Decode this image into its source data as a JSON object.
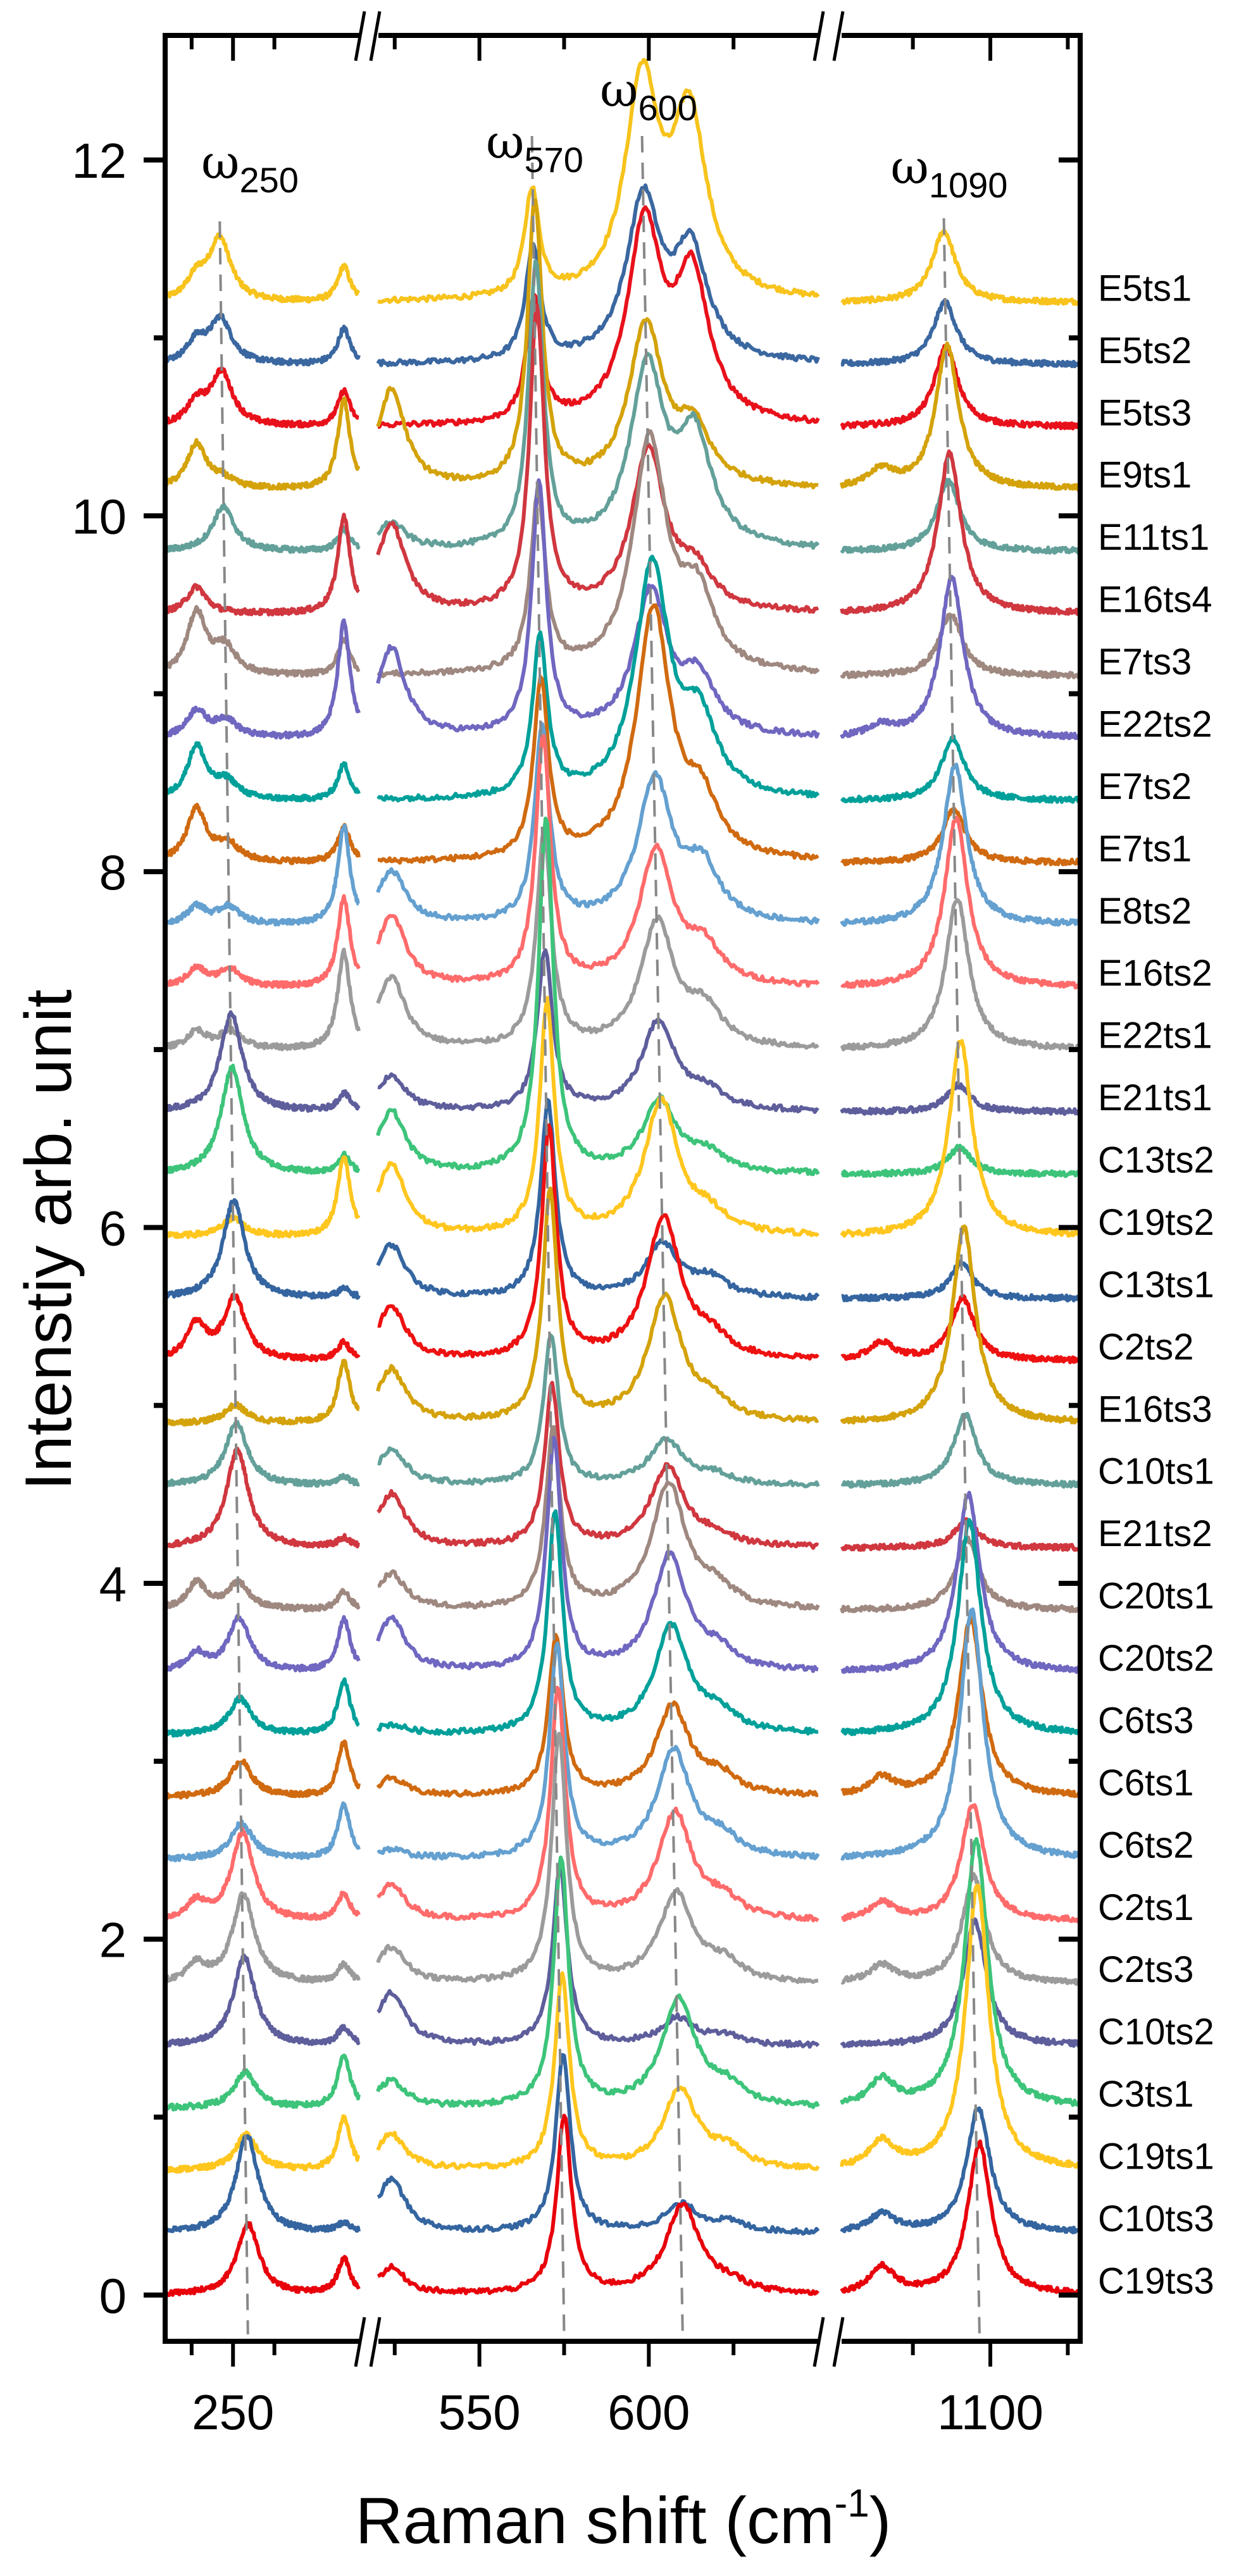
{
  "chart_data": {
    "type": "line",
    "title": "",
    "xlabel": "Raman shift (cm",
    "xlabel_sup": "-1",
    "xlabel_close": ")",
    "ylabel": "Intenstiy arb. unit",
    "ylim": [
      -0.26,
      12.7
    ],
    "yticks": [
      "0",
      "2",
      "4",
      "6",
      "8",
      "10",
      "12"
    ],
    "grid": false,
    "x_segments": [
      {
        "range": [
          209,
          326
        ],
        "major_ticks": [
          "250"
        ],
        "minor_ticks": [
          225,
          275
        ]
      },
      {
        "range": [
          520,
          650
        ],
        "major_ticks": [
          "550",
          "600"
        ],
        "minor_ticks": [
          525,
          575,
          625
        ]
      },
      {
        "range": [
          1052,
          1129
        ],
        "major_ticks": [
          "1100"
        ],
        "minor_ticks": [
          1075,
          1125
        ]
      }
    ],
    "offset_step": 0.35,
    "mode_positions_cm": {
      "low": 228,
      "w250": [
        242,
        259
      ],
      "p317": 317,
      "p524": 524,
      "w570": [
        565.5,
        575
      ],
      "w600": [
        598,
        610
      ],
      "w1090": [
        1085,
        1096.5
      ],
      "p1065": 1065
    },
    "amplitude_order": [
      "low",
      "w250",
      "p317",
      "p524",
      "w570",
      "w600",
      "shoulder",
      "w1090",
      "p1065"
    ],
    "annotations": [
      {
        "symbol": "ω",
        "sub": "250"
      },
      {
        "symbol": "ω",
        "sub": "570"
      },
      {
        "symbol": "ω",
        "sub": "600"
      },
      {
        "symbol": "ω",
        "sub": "1090"
      }
    ],
    "series": [
      {
        "name": "E5ts1",
        "color": "#F7C31C",
        "amps": [
          0.12,
          0.35,
          0.2,
          0,
          0.6,
          1.2,
          1.0,
          0.4,
          0
        ]
      },
      {
        "name": "E5ts2",
        "color": "#3A67A0",
        "amps": [
          0.12,
          0.25,
          0.2,
          0,
          0.65,
          0.9,
          0.6,
          0.35,
          0
        ]
      },
      {
        "name": "E5ts3",
        "color": "#E8111B",
        "amps": [
          0.12,
          0.3,
          0.2,
          0,
          0.7,
          1.1,
          0.8,
          0.45,
          0
        ]
      },
      {
        "name": "E9ts1",
        "color": "#D4A20A",
        "amps": [
          0.25,
          0.05,
          0.5,
          0.55,
          1.6,
          0.9,
          0.3,
          0.8,
          0.1
        ]
      },
      {
        "name": "E11ts1",
        "color": "#64A09A",
        "amps": [
          0,
          0.25,
          0.12,
          0.15,
          1.6,
          1.0,
          0.6,
          0.4,
          0
        ]
      },
      {
        "name": "E16ts4",
        "color": "#D0373F",
        "amps": [
          0.15,
          0,
          0.55,
          0.5,
          1.7,
          0.9,
          0.2,
          0.9,
          0
        ]
      },
      {
        "name": "E7ts3",
        "color": "#9E8880",
        "amps": [
          0.35,
          0.15,
          0.2,
          0,
          1.0,
          1.3,
          0.4,
          0.35,
          0
        ]
      },
      {
        "name": "E22ts2",
        "color": "#6F67C0",
        "amps": [
          0.15,
          0.1,
          0.65,
          0.5,
          1.4,
          0.8,
          0.3,
          0.9,
          0.06
        ]
      },
      {
        "name": "E7ts2",
        "color": "#00A09A",
        "amps": [
          0.3,
          0.1,
          0.2,
          0,
          0.9,
          1.3,
          0.4,
          0.35,
          0
        ]
      },
      {
        "name": "E7ts1",
        "color": "#D06A10",
        "amps": [
          0.3,
          0.1,
          0.2,
          0,
          1.0,
          1.4,
          0.3,
          0.3,
          0
        ]
      },
      {
        "name": "E8ts2",
        "color": "#64A0D0",
        "amps": [
          0.1,
          0.1,
          0.55,
          0.3,
          1.1,
          0.8,
          0.3,
          0.9,
          0
        ]
      },
      {
        "name": "E16ts2",
        "color": "#FF6B6B",
        "amps": [
          0.1,
          0.1,
          0.5,
          0.4,
          1.4,
          0.75,
          0.2,
          0.95,
          0
        ]
      },
      {
        "name": "E22ts1",
        "color": "#9B9B9B",
        "amps": [
          0.1,
          0.1,
          0.55,
          0.4,
          1.2,
          0.7,
          0.2,
          0.85,
          0
        ]
      },
      {
        "name": "E21ts1",
        "color": "#5E5E9C",
        "amps": [
          0,
          0.55,
          0.1,
          0.2,
          0.9,
          0.5,
          0.1,
          0.15,
          0
        ]
      },
      {
        "name": "C13ts2",
        "color": "#3DC47A",
        "amps": [
          0,
          0.6,
          0.1,
          0.35,
          2.0,
          0.4,
          0.1,
          0.15,
          0
        ]
      },
      {
        "name": "C19ts2",
        "color": "#FFC61E",
        "amps": [
          0,
          0.1,
          0.45,
          0.4,
          1.3,
          0.75,
          0.1,
          1.1,
          0
        ]
      },
      {
        "name": "C13ts1",
        "color": "#3465A0",
        "amps": [
          0,
          0.55,
          0.05,
          0.3,
          1.1,
          0.3,
          0.1,
          0.2,
          0
        ]
      },
      {
        "name": "C2ts2",
        "color": "#EE1111",
        "amps": [
          0.2,
          0.35,
          0.1,
          0.3,
          1.3,
          0.8,
          0.1,
          0.35,
          0.1
        ]
      },
      {
        "name": "E16ts3",
        "color": "#D4A20A",
        "amps": [
          0,
          0.1,
          0.35,
          0.3,
          1.3,
          0.7,
          0.1,
          1.1,
          0
        ]
      },
      {
        "name": "C10ts1",
        "color": "#64A09A",
        "amps": [
          0,
          0.35,
          0.05,
          0.2,
          0.85,
          0.25,
          0.05,
          0.4,
          0
        ]
      },
      {
        "name": "E21ts2",
        "color": "#D0373F",
        "amps": [
          0,
          0.55,
          0.05,
          0.3,
          0.9,
          0.45,
          0.05,
          0.15,
          0
        ]
      },
      {
        "name": "C20ts1",
        "color": "#9E8880",
        "amps": [
          0.15,
          0.15,
          0.1,
          0.2,
          1.0,
          0.7,
          0.1,
          0.4,
          0
        ]
      },
      {
        "name": "C20ts2",
        "color": "#6F67C0",
        "amps": [
          0.1,
          0.3,
          0.3,
          0.3,
          1.3,
          0.65,
          0.1,
          1.0,
          0
        ]
      },
      {
        "name": "C6ts3",
        "color": "#00A09A",
        "amps": [
          0,
          0.2,
          0.3,
          0.05,
          1.25,
          0.6,
          0.1,
          1.2,
          0
        ]
      },
      {
        "name": "C6ts1",
        "color": "#D06A10",
        "amps": [
          0,
          0.2,
          0.3,
          0.1,
          0.9,
          0.5,
          0.1,
          1.0,
          0.1
        ]
      },
      {
        "name": "C6ts2",
        "color": "#64A0D0",
        "amps": [
          0,
          0.2,
          0.3,
          0.05,
          1.2,
          0.6,
          0.1,
          1.4,
          0
        ]
      },
      {
        "name": "C2ts1",
        "color": "#FF6B6B",
        "amps": [
          0.1,
          0.5,
          0.15,
          0.2,
          1.3,
          0.6,
          0.1,
          0.65,
          0.1
        ]
      },
      {
        "name": "C2ts3",
        "color": "#9B9B9B",
        "amps": [
          0.1,
          0.5,
          0.1,
          0.2,
          1.4,
          0.5,
          0.1,
          0.6,
          0.1
        ]
      },
      {
        "name": "C10ts2",
        "color": "#5E5E9C",
        "amps": [
          0,
          0.5,
          0.1,
          0.3,
          1.0,
          0.15,
          0.05,
          0.7,
          0
        ]
      },
      {
        "name": "C3ts1",
        "color": "#3DC47A",
        "amps": [
          0,
          0.2,
          0.3,
          0.15,
          1.4,
          0.6,
          0.1,
          1.5,
          0.15
        ]
      },
      {
        "name": "C19ts1",
        "color": "#FFC61E",
        "amps": [
          0,
          0.2,
          0.3,
          0.2,
          1.1,
          0.45,
          0.1,
          1.6,
          0.15
        ]
      },
      {
        "name": "C10ts3",
        "color": "#3465A0",
        "amps": [
          0,
          0.55,
          0.05,
          0.3,
          1.0,
          0.15,
          0.05,
          0.7,
          0.1
        ]
      },
      {
        "name": "C19ts3",
        "color": "#E8000B",
        "amps": [
          0,
          0.4,
          0.2,
          0.15,
          1.0,
          0.5,
          0.05,
          0.85,
          0.15
        ]
      }
    ]
  }
}
